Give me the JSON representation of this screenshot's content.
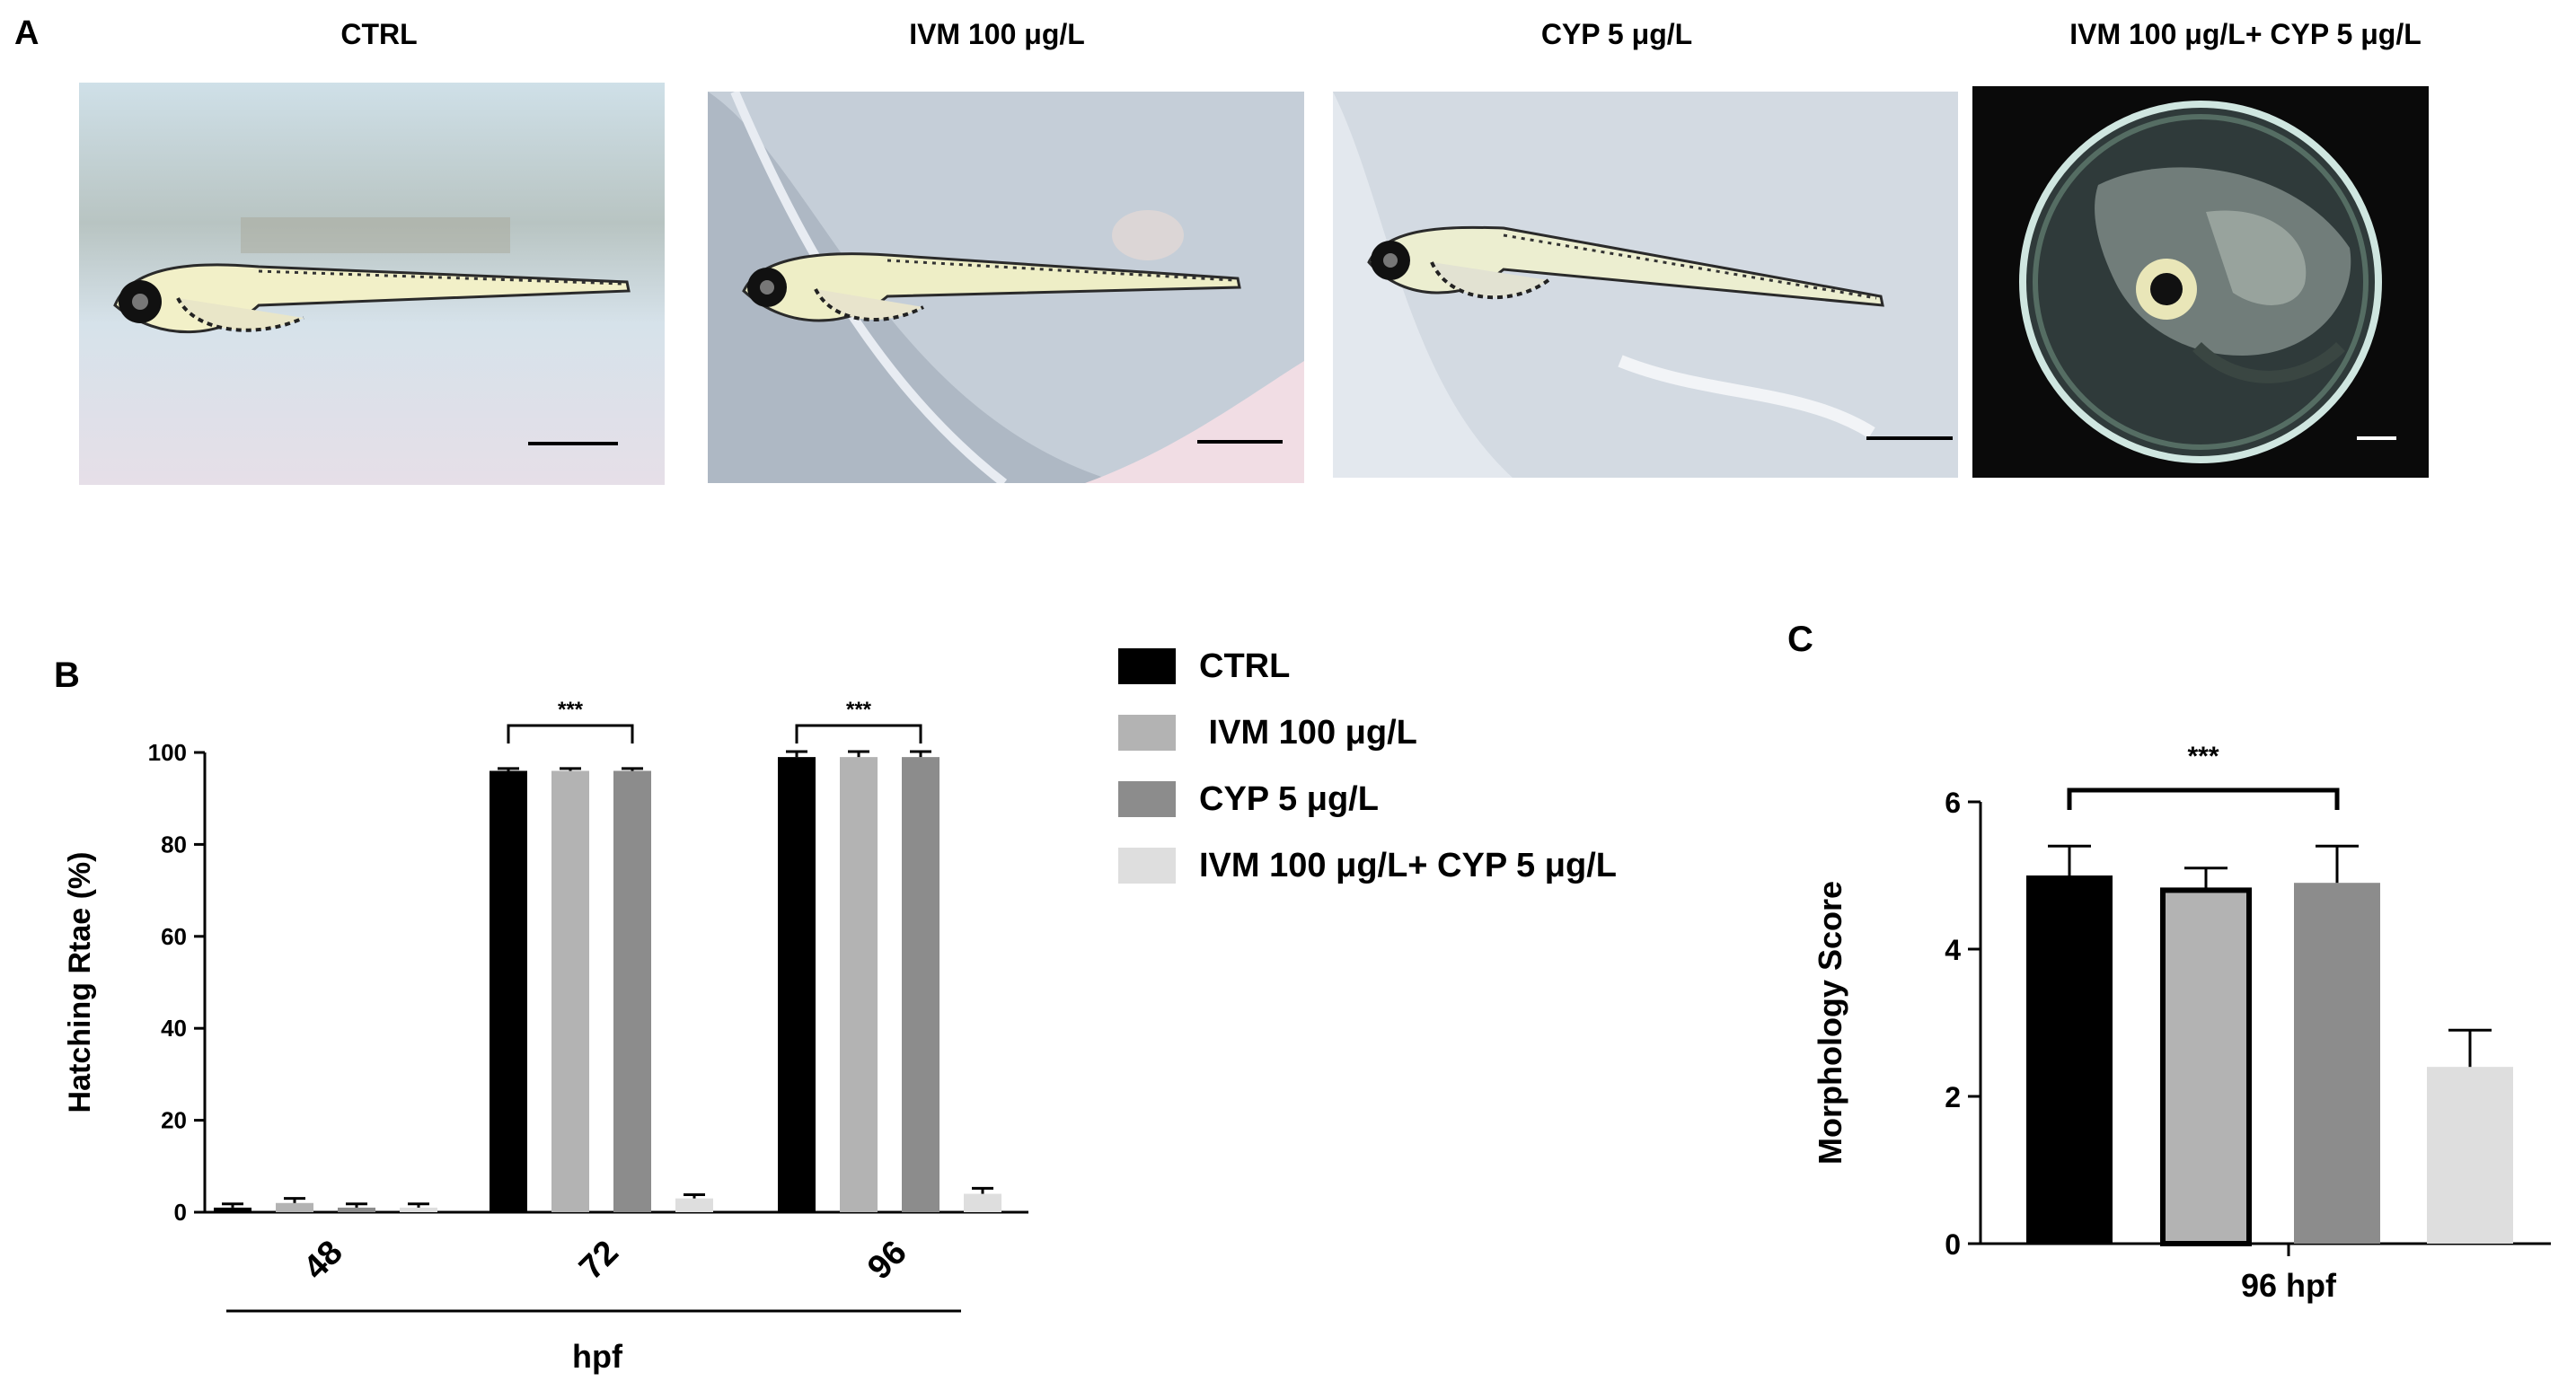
{
  "panel_a": {
    "letter": "A",
    "images": [
      {
        "title": "CTRL",
        "content": "zebrafish larva, normal morphology",
        "background": "light"
      },
      {
        "title": "IVM 100 μg/L",
        "content": "zebrafish larva, normal morphology",
        "background": "light"
      },
      {
        "title": "CYP 5 μg/L",
        "content": "zebrafish larva, normal morphology",
        "background": "light"
      },
      {
        "title": "IVM 100 μg/L+ CYP 5 μg/L",
        "content": "unhatched embryo inside chorion",
        "background": "dark"
      }
    ]
  },
  "legend": {
    "items": [
      {
        "label": "CTRL",
        "color": "#000000"
      },
      {
        "label": " IVM 100 μg/L",
        "color": "#b3b3b3"
      },
      {
        "label": "CYP 5 μg/L",
        "color": "#8c8c8c"
      },
      {
        "label": "IVM 100 μg/L+ CYP 5 μg/L",
        "color": "#dedede"
      }
    ]
  },
  "chart_data": [
    {
      "panel": "B",
      "type": "bar",
      "xlabel": "hpf",
      "ylabel": "Hatching Rtae (%)",
      "ylim": [
        0,
        100
      ],
      "yticks": [
        0,
        20,
        40,
        60,
        80,
        100
      ],
      "categories": [
        "48",
        "72",
        "96"
      ],
      "series": [
        {
          "name": "CTRL",
          "color": "#000000",
          "values": [
            1,
            96,
            99
          ],
          "errors": [
            0.8,
            0.5,
            1.2
          ]
        },
        {
          "name": " IVM 100 μg/L",
          "color": "#b3b3b3",
          "values": [
            2,
            96,
            99
          ],
          "errors": [
            1.0,
            0.5,
            1.2
          ]
        },
        {
          "name": "CYP 5 μg/L",
          "color": "#8c8c8c",
          "values": [
            1,
            96,
            99
          ],
          "errors": [
            0.8,
            0.5,
            1.2
          ]
        },
        {
          "name": "IVM 100 μg/L+ CYP 5 μg/L",
          "color": "#dedede",
          "values": [
            1,
            3,
            4
          ],
          "errors": [
            0.8,
            0.8,
            1.2
          ]
        }
      ],
      "significance": [
        {
          "category": "72",
          "label": "***",
          "from_series": 0,
          "to_series": 2
        },
        {
          "category": "96",
          "label": "***",
          "from_series": 0,
          "to_series": 2
        }
      ],
      "grid": false
    },
    {
      "panel": "C",
      "type": "bar",
      "xlabel": "96 hpf",
      "ylabel": "Morphology Score",
      "ylim": [
        0,
        6
      ],
      "yticks": [
        0,
        2,
        4,
        6
      ],
      "series": [
        {
          "name": "CTRL",
          "color": "#000000",
          "value": 5.0,
          "error": 0.4
        },
        {
          "name": " IVM 100 μg/L",
          "color": "#b3b3b3",
          "value": 4.8,
          "error": 0.3
        },
        {
          "name": "CYP 5 μg/L",
          "color": "#8c8c8c",
          "value": 4.9,
          "error": 0.5
        },
        {
          "name": "IVM 100 μg/L+ CYP 5 μg/L",
          "color": "#dedede",
          "value": 2.4,
          "error": 0.5
        }
      ],
      "significance": [
        {
          "label": "***",
          "from_series": 0,
          "to_series": 2
        }
      ],
      "grid": false
    }
  ]
}
